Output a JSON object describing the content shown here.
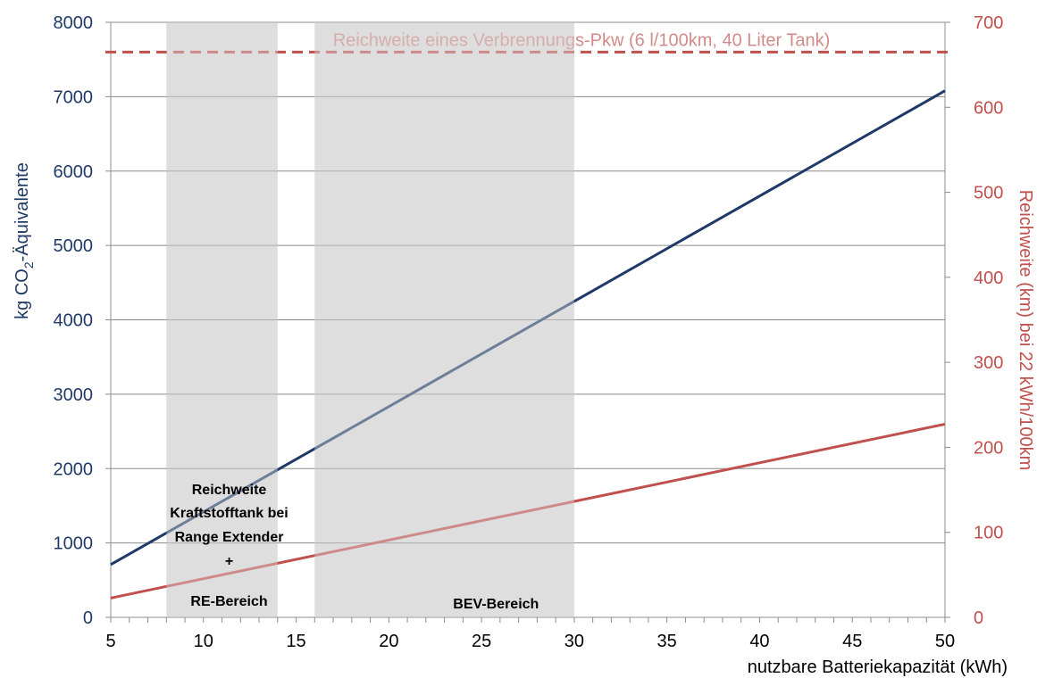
{
  "chart_data": {
    "type": "line",
    "x_axis": {
      "label": "nutzbare Batteriekapazität (kWh)",
      "range": [
        5,
        50
      ],
      "ticks": [
        "5",
        "10",
        "15",
        "20",
        "25",
        "30",
        "35",
        "40",
        "45",
        "50"
      ]
    },
    "y_axis_left": {
      "label_prefix": "kg CO",
      "label_subscript": "2",
      "label_suffix": "-Äquivalente",
      "range": [
        0,
        8000
      ],
      "ticks": [
        "0",
        "1000",
        "2000",
        "3000",
        "4000",
        "5000",
        "6000",
        "7000",
        "8000"
      ]
    },
    "y_axis_right": {
      "label": "Reichweite (km) bei 22 kWh/100km",
      "range": [
        0,
        700
      ],
      "ticks": [
        "0",
        "100",
        "200",
        "300",
        "400",
        "500",
        "600",
        "700"
      ]
    },
    "grid": true,
    "series": [
      {
        "axis": "left",
        "color": "#1f3a68",
        "x": [
          5,
          50
        ],
        "y": [
          710,
          7080
        ]
      },
      {
        "axis": "right",
        "color": "#c0504d",
        "x": [
          5,
          50
        ],
        "y": [
          22.7,
          227.3
        ]
      }
    ],
    "reference_line": {
      "axis": "right",
      "value": 665,
      "style": "dashed",
      "color": "#c0504d",
      "label": "Reichweite eines Verbrennungs-Pkw (6 l/100km, 40 Liter Tank)"
    },
    "bands": [
      {
        "x": [
          8,
          14
        ],
        "label_lines": [
          "Reichweite",
          "Kraftstofftank bei",
          "Range Extender",
          "+",
          "RE-Bereich"
        ]
      },
      {
        "x": [
          16,
          30
        ],
        "label_lines": [
          "BEV-Bereich"
        ]
      }
    ]
  }
}
